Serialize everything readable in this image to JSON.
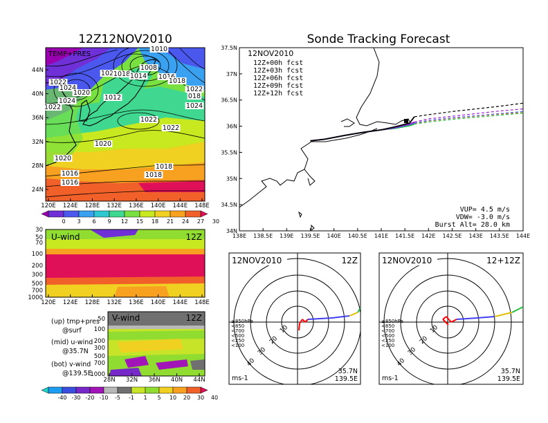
{
  "left_title": "12Z12NOV2010",
  "right_title": "Sonde Tracking Forecast",
  "map_panel": {
    "label": "TEMP+PRES",
    "x_ticks": [
      "120E",
      "124E",
      "128E",
      "132E",
      "136E",
      "140E",
      "144E",
      "148E"
    ],
    "y_ticks": [
      "44N",
      "40N",
      "36N",
      "32N",
      "28N",
      "24N"
    ],
    "isobars": [
      "1010",
      "1008",
      "1020",
      "1018",
      "1022",
      "1024",
      "1020",
      "1012",
      "1014",
      "1016",
      "1018",
      "1022",
      "018",
      "1024",
      "1022",
      "1024",
      "1022",
      "1022",
      "1020",
      "1020",
      "1018",
      "1018",
      "1016",
      "1016"
    ],
    "colorbar_ticks": [
      "0",
      "3",
      "6",
      "9",
      "12",
      "15",
      "18",
      "21",
      "24",
      "27",
      "30"
    ],
    "colorbar_colors": [
      "#9b00b0",
      "#7030d8",
      "#4a58ee",
      "#3aa0f0",
      "#30c8d0",
      "#40d890",
      "#78e040",
      "#c8e820",
      "#f0d020",
      "#f8a020",
      "#f06028",
      "#e01058"
    ]
  },
  "u_panel": {
    "label": "U-wind",
    "time": "12Z",
    "y_ticks": [
      "30",
      "50",
      "70",
      "100",
      "200",
      "300",
      "500",
      "700",
      "1000"
    ],
    "x_ticks": [
      "120E",
      "124E",
      "128E",
      "132E",
      "136E",
      "140E",
      "144E",
      "148E"
    ]
  },
  "v_panel": {
    "label": "V-wind",
    "time": "12Z",
    "y_ticks": [
      "50",
      "100",
      "200",
      "300",
      "500",
      "700",
      "1000"
    ],
    "x_ticks": [
      "28N",
      "32N",
      "36N",
      "40N",
      "44N"
    ],
    "colorbar_ticks": [
      "-40",
      "-30",
      "-20",
      "-10",
      "-5",
      "-1",
      "1",
      "5",
      "10",
      "20",
      "30",
      "40"
    ],
    "colorbar_colors": [
      "#1ed4c8",
      "#1e9cf0",
      "#3a4ee0",
      "#7628c8",
      "#a014b8",
      "#b8b8b8",
      "#707070",
      "#c8e428",
      "#90dc30",
      "#f0d020",
      "#f8a020",
      "#f06028",
      "#e01058"
    ]
  },
  "legend_notes": [
    {
      "line1": "(up) tmp+pres",
      "line2": "@surf"
    },
    {
      "line1": "(mid) u-wind",
      "line2": "@35.7N"
    },
    {
      "line1": "(bot) v-wind",
      "line2": "@139.5E"
    }
  ],
  "track_panel": {
    "date": "12NOV2010",
    "forecasts": [
      {
        "label": "12Z+00h fcst",
        "color": "#000000"
      },
      {
        "label": "12Z+03h fcst",
        "color": "#a020d0"
      },
      {
        "label": "12Z+06h fcst",
        "color": "#4060f0"
      },
      {
        "label": "12Z+09h fcst",
        "color": "#20c040"
      },
      {
        "label": "12Z+12h fcst",
        "color": "#f08020"
      }
    ],
    "params": [
      "VUP=  4.5  m/s",
      "VDW=  -3.0  m/s",
      "Burst Alt=  28.0  km"
    ]
  },
  "polar_panels": [
    {
      "date": "12NOV2010",
      "time": "12Z",
      "lat": "35.7N",
      "lon": "139.5E",
      "units": "ms-1"
    },
    {
      "date": "12NOV2010",
      "time": "12+12Z",
      "lat": "35.7N",
      "lon": "139.5E",
      "units": "ms-1"
    }
  ],
  "polar_rings": [
    "10",
    "20",
    "30",
    "40"
  ],
  "polar_legend": [
    {
      "label": "≥850hPa",
      "color": "#ff0000"
    },
    {
      "label": "<850",
      "color": "#f08020"
    },
    {
      "label": "<700",
      "color": "#e0c000"
    },
    {
      "label": "<500",
      "color": "#20c040"
    },
    {
      "label": "<250",
      "color": "#30c8f0"
    },
    {
      "label": "<100",
      "color": "#4040f0"
    }
  ],
  "chart_data": {
    "type": "line",
    "title": "Sonde Tracking Forecast",
    "xlabel": "",
    "ylabel": "",
    "xlim": [
      138,
      144
    ],
    "ylim": [
      34,
      37.5
    ],
    "x_ticks": [
      "138E",
      "138.5E",
      "139E",
      "139.5E",
      "140E",
      "140.5E",
      "141E",
      "141.5E",
      "142E",
      "142.5E",
      "143E",
      "143.5E",
      "144E"
    ],
    "y_ticks": [
      "34N",
      "34.5N",
      "35N",
      "35.5N",
      "36N",
      "36.5N",
      "37N",
      "37.5N"
    ],
    "x_tick_values": [
      138,
      138.5,
      139,
      139.5,
      140,
      140.5,
      141,
      141.5,
      142,
      142.5,
      143,
      143.5,
      144
    ],
    "y_tick_values": [
      34,
      34.5,
      35,
      35.5,
      36,
      36.5,
      37,
      37.5
    ],
    "series": [
      {
        "name": "12Z+00h fcst",
        "x": [
          139.5,
          139.8,
          140.2,
          140.6,
          141.0,
          141.3,
          141.6,
          141.7,
          142.0,
          142.5,
          143.0,
          143.5,
          144.0
        ],
        "y": [
          35.72,
          35.75,
          35.82,
          35.88,
          35.93,
          35.99,
          36.06,
          36.18,
          36.22,
          36.28,
          36.33,
          36.38,
          36.44
        ]
      },
      {
        "name": "12Z+03h fcst",
        "x": [
          139.5,
          139.8,
          140.2,
          140.6,
          141.0,
          141.3,
          141.6,
          141.7,
          142.0,
          142.5,
          143.0,
          143.5,
          144.0
        ],
        "y": [
          35.72,
          35.75,
          35.82,
          35.88,
          35.93,
          35.98,
          36.04,
          36.08,
          36.14,
          36.19,
          36.24,
          36.29,
          36.33
        ]
      },
      {
        "name": "12Z+06h fcst",
        "x": [
          139.5,
          139.8,
          140.2,
          140.6,
          141.0,
          141.3,
          141.6,
          141.7,
          142.0,
          142.5,
          143.0,
          143.5,
          144.0
        ],
        "y": [
          35.72,
          35.75,
          35.82,
          35.88,
          35.93,
          35.97,
          36.03,
          36.06,
          36.11,
          36.16,
          36.2,
          36.24,
          36.28
        ]
      },
      {
        "name": "12Z+09h fcst",
        "x": [
          139.5,
          139.8,
          140.2,
          140.6,
          141.0,
          141.3,
          141.6,
          141.7,
          142.0,
          142.5,
          143.0,
          143.5,
          144.0
        ],
        "y": [
          35.72,
          35.75,
          35.82,
          35.88,
          35.93,
          35.96,
          36.01,
          36.04,
          36.08,
          36.13,
          36.17,
          36.21,
          36.25
        ]
      },
      {
        "name": "12Z+12h fcst",
        "x": [
          139.5,
          139.8,
          140.2,
          140.6,
          141.0,
          141.3,
          141.6,
          141.7,
          142.0,
          142.5,
          143.0,
          143.5,
          144.0
        ],
        "y": [
          35.72,
          35.75,
          35.82,
          35.88,
          35.93,
          35.96,
          36.02,
          36.05,
          36.1,
          36.15,
          36.19,
          36.23,
          36.26
        ]
      }
    ],
    "grid": false,
    "legend": "top-left"
  }
}
